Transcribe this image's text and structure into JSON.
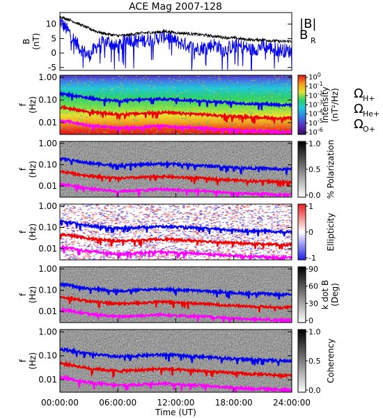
{
  "chart_data": [
    {
      "type": "line",
      "title": "ACE Mag 2007-128",
      "ylabel": [
        "B",
        "(nT)"
      ],
      "ylim": [
        -6,
        14
      ],
      "yticks": [
        "10",
        "5",
        "0",
        "-5"
      ],
      "ytick_values": [
        10,
        5,
        0,
        -5
      ],
      "series": [
        {
          "name": "|B|",
          "color": "#000000",
          "values": [
            12.5,
            11.5,
            10.0,
            8.5,
            7.2,
            6.5,
            6.0,
            6.2,
            6.8,
            7.0,
            7.2,
            7.5,
            7.0,
            6.8,
            6.5,
            6.2,
            5.8,
            5.4,
            5.2,
            4.8,
            4.5,
            4.6,
            4.2,
            4.0,
            4.1
          ]
        },
        {
          "name": "B",
          "subscript": "R",
          "color": "#0000ee",
          "values": [
            11.0,
            7.0,
            2.0,
            -1.0,
            3.0,
            4.0,
            2.0,
            5.0,
            4.0,
            4.5,
            5.0,
            6.0,
            4.0,
            3.0,
            1.5,
            2.0,
            3.0,
            1.0,
            2.5,
            2.0,
            1.0,
            2.5,
            1.5,
            1.0,
            0.5
          ]
        }
      ]
    },
    {
      "type": "heatmap",
      "ylabel": [
        "f",
        "(Hz)"
      ],
      "yticks": [
        "1.00",
        "0.10",
        "0.01"
      ],
      "colorbar": {
        "label": [
          "Intensity",
          "(nT²/Hz)"
        ],
        "ticks": [
          {
            "base": "10",
            "exp": "0"
          },
          {
            "base": "10",
            "exp": "-1"
          },
          {
            "base": "10",
            "exp": "-2"
          },
          {
            "base": "10",
            "exp": "-3"
          },
          {
            "base": "10",
            "exp": "-4"
          },
          {
            "base": "10",
            "exp": "-5"
          },
          {
            "base": "10",
            "exp": "-6"
          }
        ]
      },
      "legend": [
        {
          "symbol": "Ω",
          "sub": "H+",
          "color": "#0000ee"
        },
        {
          "symbol": "Ω",
          "sub": "He+",
          "color": "#ee0000"
        },
        {
          "symbol": "Ω",
          "sub": "O+",
          "color": "#ff00ff"
        }
      ]
    },
    {
      "type": "heatmap",
      "ylabel": [
        "f",
        "(Hz)"
      ],
      "yticks": [
        "1.00",
        "0.10",
        "0.01"
      ],
      "colorbar": {
        "label": [
          "% Polarization"
        ],
        "ticks": [
          "1.0",
          "0.5",
          "0.0"
        ]
      }
    },
    {
      "type": "heatmap",
      "ylabel": [
        "f",
        "(Hz)"
      ],
      "yticks": [
        "1.00",
        "0.10",
        "0.01"
      ],
      "colorbar": {
        "label": [
          "Ellipticity"
        ],
        "ticks": [
          "1",
          "0",
          "-1"
        ]
      }
    },
    {
      "type": "heatmap",
      "ylabel": [
        "f",
        "(Hz)"
      ],
      "yticks": [
        "1.00",
        "0.10",
        "0.01"
      ],
      "colorbar": {
        "label": [
          "k dot B",
          "(Deg)"
        ],
        "ticks": [
          "90",
          "60",
          "30",
          "0"
        ]
      }
    },
    {
      "type": "heatmap",
      "ylabel": [
        "f",
        "(Hz)"
      ],
      "yticks": [
        "1.00",
        "0.10",
        "0.01"
      ],
      "colorbar": {
        "label": [
          "Coherency"
        ],
        "ticks": [
          "1.0",
          "0.5",
          "0.0"
        ]
      },
      "xticks": [
        "00:00:00",
        "06:00:00",
        "12:00:00",
        "18:00:00",
        "24:00:00"
      ],
      "xlabel": "Time (UT)"
    }
  ],
  "gyrofrequency_lines": {
    "time_hours": [
      0,
      1,
      2,
      3,
      4,
      5,
      6,
      7,
      8,
      9,
      10,
      11,
      12,
      13,
      14,
      15,
      16,
      17,
      18,
      19,
      20,
      21,
      22,
      23,
      24
    ],
    "H+_hz": [
      0.19,
      0.17,
      0.14,
      0.12,
      0.11,
      0.1,
      0.09,
      0.095,
      0.1,
      0.105,
      0.11,
      0.11,
      0.105,
      0.1,
      0.095,
      0.09,
      0.085,
      0.08,
      0.075,
      0.07,
      0.068,
      0.069,
      0.064,
      0.061,
      0.062
    ],
    "He+_hz": [
      0.048,
      0.043,
      0.035,
      0.03,
      0.028,
      0.025,
      0.023,
      0.024,
      0.025,
      0.026,
      0.028,
      0.028,
      0.026,
      0.025,
      0.024,
      0.023,
      0.021,
      0.02,
      0.019,
      0.018,
      0.017,
      0.017,
      0.016,
      0.015,
      0.016
    ],
    "O+_hz": [
      0.012,
      0.011,
      0.009,
      0.0075,
      0.007,
      0.0062,
      0.0057,
      0.006,
      0.0062,
      0.0065,
      0.007,
      0.007,
      0.0065,
      0.0062,
      0.006,
      0.0057,
      0.0053,
      0.005,
      0.0047,
      0.0044,
      0.0042,
      0.0043,
      0.004,
      0.0038,
      0.0039
    ]
  },
  "colors": {
    "H+": "#0000ee",
    "He+": "#ee0000",
    "O+": "#ff00ff",
    "B_R": "#0000ee",
    "B_mag": "#000000"
  }
}
